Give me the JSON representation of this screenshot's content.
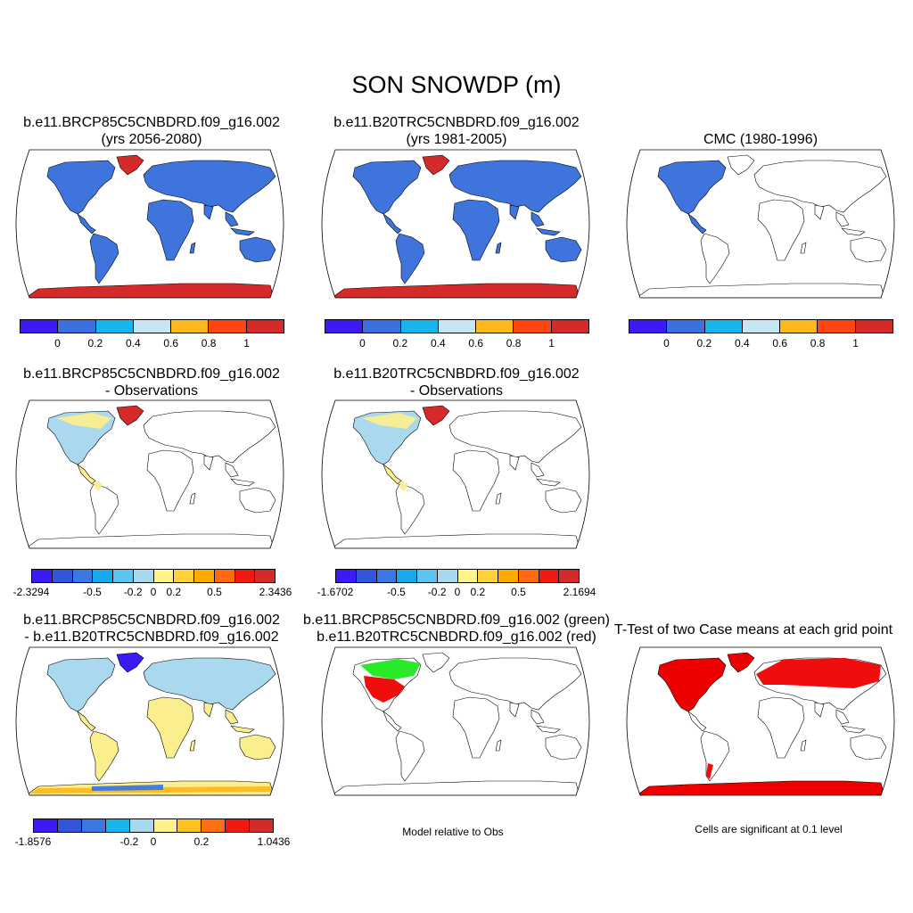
{
  "title": "SON SNOWDP (m)",
  "colors": {
    "ocean": "#ffffff",
    "outline": "#000000",
    "abs_scale": [
      "#3a1af5",
      "#3a70e0",
      "#18b4ec",
      "#c6e6f4",
      "#ffb81c",
      "#ff4612",
      "#d42a2a"
    ],
    "diff_scale": [
      "#3a1af5",
      "#3355dd",
      "#3a78e6",
      "#18a8ec",
      "#5cc4ee",
      "#a6d8ee",
      "#fff48a",
      "#ffd23c",
      "#ffaa00",
      "#ff6a10",
      "#f01a10",
      "#d42a2a"
    ],
    "diff3_scale": [
      "#3a1af5",
      "#3355dd",
      "#3a78e6",
      "#18b4ec",
      "#a6d8ee",
      "#fff08a",
      "#ffc21c",
      "#ff7012",
      "#f01a10",
      "#d42a2a"
    ],
    "land_blue": "#3f74dd",
    "land_red": "#d42a2a",
    "land_lightblue": "#a9d8ef",
    "land_yellow": "#fbee8f",
    "sig_red": "#ee0000",
    "model_green": "#1ee81e"
  },
  "panels": {
    "p1": {
      "title1": "b.e11.BRCP85C5CNBDRD.f09_g16.002",
      "title2": "(yrs 2056-2080)"
    },
    "p2": {
      "title1": "b.e11.B20TRC5CNBDRD.f09_g16.002",
      "title2": "(yrs 1981-2005)"
    },
    "p3": {
      "title1": "CMC (1980-1996)"
    },
    "p4": {
      "title1": "b.e11.BRCP85C5CNBDRD.f09_g16.002",
      "title2": "- Observations"
    },
    "p5": {
      "title1": "b.e11.B20TRC5CNBDRD.f09_g16.002",
      "title2": "- Observations"
    },
    "p7": {
      "title1": "b.e11.BRCP85C5CNBDRD.f09_g16.002",
      "title2": "- b.e11.B20TRC5CNBDRD.f09_g16.002"
    },
    "p8": {
      "title1": "b.e11.BRCP85C5CNBDRD.f09_g16.002 (green)",
      "title2": "b.e11.B20TRC5CNBDRD.f09_g16.002 (red)",
      "note": "Model relative to Obs"
    },
    "p9": {
      "title1": "T-Test of two Case means at each grid point",
      "note": "Cells are significant at 0.1 level"
    }
  },
  "colorbars": {
    "abs_ticks": [
      "0",
      "0.2",
      "0.4",
      "0.6",
      "0.8",
      "1"
    ],
    "p4_ticks": [
      "-2.3294",
      "-0.5",
      "-0.2",
      "0",
      "0.2",
      "0.5",
      "2.3436"
    ],
    "p5_ticks": [
      "-1.6702",
      "-0.5",
      "-0.2",
      "0",
      "0.2",
      "0.5",
      "2.1694"
    ],
    "p7_ticks": [
      "-1.8576",
      "-0.2",
      "0",
      "0.2",
      "1.0436"
    ]
  }
}
